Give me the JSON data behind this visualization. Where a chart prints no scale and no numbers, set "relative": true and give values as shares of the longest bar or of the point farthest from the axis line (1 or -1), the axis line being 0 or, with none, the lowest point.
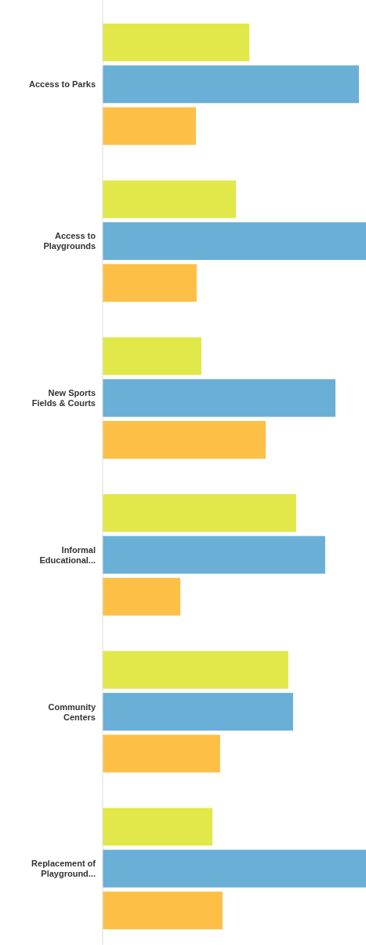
{
  "chart_data": {
    "type": "bar",
    "orientation": "horizontal",
    "relative": true,
    "categories": [
      "Access to Parks",
      "Access to Playgrounds",
      "New Sports Fields & Courts",
      "Informal Educational...",
      "Community Centers",
      "Replacement of Playground..."
    ],
    "series": [
      {
        "color": "#e1e84a",
        "values": [
          0.557,
          0.506,
          0.375,
          0.735,
          0.705,
          0.417
        ]
      },
      {
        "color": "#6aafd6",
        "values": [
          0.973,
          1,
          0.884,
          0.845,
          0.723,
          1
        ]
      },
      {
        "color": "#fdbf45",
        "values": [
          0.354,
          0.357,
          0.619,
          0.295,
          0.446,
          0.455
        ]
      }
    ]
  }
}
